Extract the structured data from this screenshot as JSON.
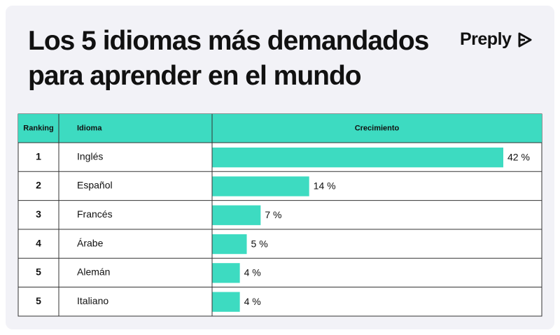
{
  "chart_data": {
    "type": "bar",
    "title": "Los 5 idiomas más demandados para aprender en el mundo",
    "brand": "Preply",
    "columns": [
      "Ranking",
      "Idioma",
      "Crecimiento"
    ],
    "ranks": [
      1,
      2,
      3,
      4,
      5,
      5
    ],
    "categories": [
      "Inglés",
      "Español",
      "Francés",
      "Árabe",
      "Alemán",
      "Italiano"
    ],
    "values": [
      42,
      14,
      7,
      5,
      4,
      4
    ],
    "value_labels": [
      "42 %",
      "14 %",
      "7 %",
      "5 %",
      "4 %",
      "4 %"
    ],
    "color": "#3ddbc1"
  }
}
